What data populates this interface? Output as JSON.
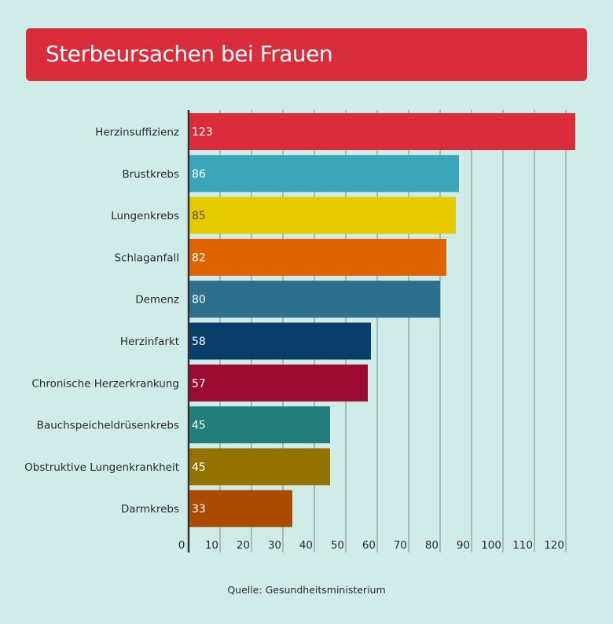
{
  "chart_data": {
    "type": "bar",
    "orientation": "horizontal",
    "title": "Sterbeursachen bei Frauen",
    "categories": [
      "Herzinsuffizienz",
      "Brustkrebs",
      "Lungenkrebs",
      "Schlaganfall",
      "Demenz",
      "Herzinfarkt",
      "Chronische Herzerkrankung",
      "Bauchspeicheldrüsenkrebs",
      "Obstruktive Lungenkrankheit",
      "Darmkrebs"
    ],
    "values": [
      123,
      86,
      85,
      82,
      80,
      58,
      57,
      45,
      45,
      33
    ],
    "colors": [
      "#d92d3c",
      "#3ba6b9",
      "#e8ca00",
      "#df6400",
      "#2d6f8c",
      "#093d6a",
      "#9b0a30",
      "#217e7b",
      "#947200",
      "#ab4b00"
    ],
    "label_colors": [
      "#ffffff",
      "#ffffff",
      "#5a4a00",
      "#ffffff",
      "#ffffff",
      "#ffffff",
      "#ffffff",
      "#ffffff",
      "#ffffff",
      "#ffffff"
    ],
    "xlim": [
      0,
      125
    ],
    "xticks": [
      0,
      10,
      20,
      30,
      40,
      50,
      60,
      70,
      80,
      90,
      100,
      110,
      120
    ],
    "grid": true,
    "source": "Quelle: Gesundheitsministerium"
  }
}
